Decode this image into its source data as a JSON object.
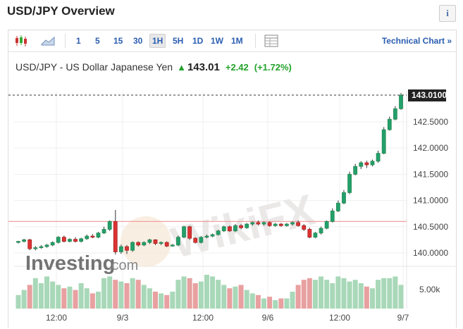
{
  "header": {
    "title": "USD/JPY Overview",
    "info_label": "i"
  },
  "toolbar": {
    "timeframes": [
      "1",
      "5",
      "15",
      "30",
      "1H",
      "5H",
      "1D",
      "1W",
      "1M"
    ],
    "active": "1H",
    "technical_chart_label": "Technical Chart »",
    "icons": [
      "candlestick-icon",
      "area-chart-icon",
      "table-icon"
    ]
  },
  "quote": {
    "name": "USD/JPY - US Dollar Japanese Yen",
    "last": "143.01",
    "change": "+2.42",
    "change_pct": "(+1.72%)",
    "up_color": "#22a22a"
  },
  "watermarks": {
    "wikifx": "WikiFX",
    "investing": "Investing",
    "investing_suffix": ".com"
  },
  "chart_data": {
    "type": "candlestick",
    "y_ticks": [
      "143.0100",
      "142.5000",
      "142.0000",
      "141.5000",
      "141.0000",
      "140.5000",
      "140.0000"
    ],
    "y_tick_values": [
      143.01,
      142.5,
      142.0,
      141.5,
      141.0,
      140.5,
      140.0
    ],
    "x_labels": [
      "12:00",
      "9/3",
      "12:00",
      "9/6",
      "12:00",
      "9/7"
    ],
    "current_price": 143.01,
    "reference_line": 140.6,
    "volume_label": "5.00k",
    "colors": {
      "up": "#22a06b",
      "down": "#d33",
      "vol_up": "#a8d8b8",
      "vol_down": "#e8a0a0",
      "ref_line": "#f0a0a0"
    },
    "candles": [
      [
        140.2,
        140.22,
        140.18,
        140.23
      ],
      [
        140.22,
        140.25,
        140.2,
        140.27
      ],
      [
        140.25,
        140.08,
        140.05,
        140.27
      ],
      [
        140.08,
        140.1,
        140.05,
        140.13
      ],
      [
        140.1,
        140.12,
        140.08,
        140.15
      ],
      [
        140.12,
        140.15,
        140.1,
        140.17
      ],
      [
        140.15,
        140.2,
        140.13,
        140.22
      ],
      [
        140.2,
        140.3,
        140.18,
        140.32
      ],
      [
        140.3,
        140.22,
        140.2,
        140.33
      ],
      [
        140.22,
        140.26,
        140.2,
        140.28
      ],
      [
        140.26,
        140.22,
        140.2,
        140.3
      ],
      [
        140.22,
        140.27,
        140.2,
        140.29
      ],
      [
        140.27,
        140.32,
        140.25,
        140.35
      ],
      [
        140.32,
        140.3,
        140.28,
        140.36
      ],
      [
        140.3,
        140.38,
        140.28,
        140.4
      ],
      [
        140.38,
        140.45,
        140.36,
        140.5
      ],
      [
        140.45,
        140.6,
        140.42,
        140.62
      ],
      [
        140.6,
        140.02,
        139.97,
        140.82
      ],
      [
        140.02,
        140.12,
        139.98,
        140.16
      ],
      [
        140.12,
        140.05,
        139.98,
        140.15
      ],
      [
        140.05,
        140.2,
        140.02,
        140.22
      ],
      [
        140.2,
        140.15,
        140.12,
        140.22
      ],
      [
        140.15,
        140.2,
        140.13,
        140.22
      ],
      [
        140.2,
        140.25,
        140.17,
        140.27
      ],
      [
        140.25,
        140.18,
        140.15,
        140.26
      ],
      [
        140.18,
        140.2,
        140.15,
        140.22
      ],
      [
        140.2,
        140.13,
        140.11,
        140.22
      ],
      [
        140.13,
        140.15,
        140.12,
        140.17
      ],
      [
        140.15,
        140.3,
        140.13,
        140.33
      ],
      [
        140.3,
        140.5,
        140.28,
        140.52
      ],
      [
        140.5,
        140.28,
        140.25,
        140.52
      ],
      [
        140.28,
        140.2,
        140.18,
        140.3
      ],
      [
        140.2,
        140.3,
        140.18,
        140.32
      ],
      [
        140.3,
        140.32,
        140.28,
        140.35
      ],
      [
        140.32,
        140.35,
        140.3,
        140.37
      ],
      [
        140.35,
        140.42,
        140.33,
        140.44
      ],
      [
        140.42,
        140.5,
        140.4,
        140.52
      ],
      [
        140.5,
        140.42,
        140.4,
        140.52
      ],
      [
        140.42,
        140.52,
        140.4,
        140.55
      ],
      [
        140.52,
        140.48,
        140.45,
        140.55
      ],
      [
        140.48,
        140.55,
        140.46,
        140.57
      ],
      [
        140.55,
        140.58,
        140.52,
        140.6
      ],
      [
        140.58,
        140.55,
        140.52,
        140.62
      ],
      [
        140.55,
        140.58,
        140.52,
        140.6
      ],
      [
        140.58,
        140.52,
        140.5,
        140.6
      ],
      [
        140.52,
        140.55,
        140.5,
        140.57
      ],
      [
        140.55,
        140.52,
        140.5,
        140.57
      ],
      [
        140.52,
        140.55,
        140.5,
        140.57
      ],
      [
        140.55,
        140.58,
        140.52,
        140.6
      ],
      [
        140.58,
        140.52,
        140.5,
        140.62
      ],
      [
        140.52,
        140.45,
        140.42,
        140.55
      ],
      [
        140.45,
        140.3,
        140.28,
        140.48
      ],
      [
        140.3,
        140.38,
        140.28,
        140.4
      ],
      [
        140.38,
        140.47,
        140.35,
        140.5
      ],
      [
        140.47,
        140.6,
        140.45,
        140.62
      ],
      [
        140.6,
        140.8,
        140.58,
        140.85
      ],
      [
        140.8,
        140.95,
        140.78,
        141.0
      ],
      [
        140.95,
        141.15,
        140.93,
        141.2
      ],
      [
        141.15,
        141.5,
        141.12,
        141.55
      ],
      [
        141.5,
        141.65,
        141.48,
        141.7
      ],
      [
        141.65,
        141.72,
        141.6,
        141.75
      ],
      [
        141.72,
        141.68,
        141.62,
        141.76
      ],
      [
        141.68,
        141.75,
        141.65,
        141.78
      ],
      [
        141.75,
        141.9,
        141.72,
        141.95
      ],
      [
        141.9,
        142.35,
        141.88,
        142.4
      ],
      [
        142.35,
        142.55,
        142.33,
        142.6
      ],
      [
        142.55,
        142.75,
        142.53,
        142.8
      ],
      [
        142.75,
        143.01,
        142.73,
        143.05
      ]
    ],
    "volume": [
      0.4,
      0.55,
      0.7,
      0.9,
      0.75,
      0.95,
      0.8,
      0.7,
      0.6,
      0.65,
      0.55,
      0.75,
      0.6,
      0.45,
      0.5,
      0.9,
      0.95,
      0.85,
      0.8,
      0.75,
      0.9,
      0.85,
      0.7,
      0.6,
      0.5,
      0.45,
      0.4,
      0.5,
      0.85,
      0.95,
      0.9,
      0.75,
      0.8,
      1.0,
      0.95,
      0.85,
      0.7,
      0.6,
      0.65,
      0.7,
      0.55,
      0.45,
      0.4,
      0.3,
      0.35,
      0.25,
      0.3,
      0.3,
      0.5,
      0.7,
      0.85,
      0.9,
      0.85,
      0.95,
      0.85,
      0.75,
      0.95,
      0.9,
      0.8,
      0.85,
      0.75,
      0.65,
      0.6,
      0.85,
      0.9,
      0.9,
      0.95,
      0.7
    ]
  }
}
